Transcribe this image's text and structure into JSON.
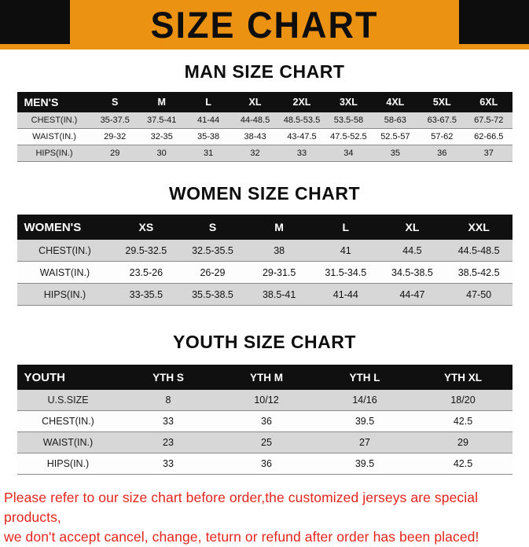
{
  "banner": {
    "title": "SIZE CHART",
    "colors": {
      "background": "#EC9213",
      "corner": "#0D0D0D",
      "text": "#0E0E0E"
    }
  },
  "sections": [
    {
      "id": "men",
      "heading": "MAN SIZE CHART",
      "table": {
        "header": [
          "MEN'S",
          "S",
          "M",
          "L",
          "XL",
          "2XL",
          "3XL",
          "4XL",
          "5XL",
          "6XL"
        ],
        "rows": [
          [
            "CHEST(IN.)",
            "35-37.5",
            "37.5-41",
            "41-44",
            "44-48.5",
            "48.5-53.5",
            "53.5-58",
            "58-63",
            "63-67.5",
            "67.5-72"
          ],
          [
            "WAIST(IN.)",
            "29-32",
            "32-35",
            "35-38",
            "38-43",
            "43-47.5",
            "47.5-52.5",
            "52.5-57",
            "57-62",
            "62-66.5"
          ],
          [
            "HIPS(IN.)",
            "29",
            "30",
            "31",
            "32",
            "33",
            "34",
            "35",
            "36",
            "37"
          ]
        ]
      }
    },
    {
      "id": "women",
      "heading": "WOMEN SIZE CHART",
      "table": {
        "header": [
          "WOMEN'S",
          "XS",
          "S",
          "M",
          "L",
          "XL",
          "XXL"
        ],
        "rows": [
          [
            "CHEST(IN.)",
            "29.5-32.5",
            "32.5-35.5",
            "38",
            "41",
            "44.5",
            "44.5-48.5"
          ],
          [
            "WAIST(IN.)",
            "23.5-26",
            "26-29",
            "29-31.5",
            "31.5-34.5",
            "34.5-38.5",
            "38.5-42.5"
          ],
          [
            "HIPS(IN.)",
            "33-35.5",
            "35.5-38.5",
            "38.5-41",
            "41-44",
            "44-47",
            "47-50"
          ]
        ]
      }
    },
    {
      "id": "youth",
      "heading": "YOUTH SIZE CHART",
      "table": {
        "header": [
          "YOUTH",
          "YTH S",
          "YTH M",
          "YTH L",
          "YTH XL"
        ],
        "rows": [
          [
            "U.S.SIZE",
            "8",
            "10/12",
            "14/16",
            "18/20"
          ],
          [
            "CHEST(IN.)",
            "33",
            "36",
            "39.5",
            "42.5"
          ],
          [
            "WAIST(IN.)",
            "23",
            "25",
            "27",
            "29"
          ],
          [
            "HIPS(IN.)",
            "33",
            "36",
            "39.5",
            "42.5"
          ]
        ]
      }
    }
  ],
  "footer": {
    "line1": "Please refer to our size chart before order,the customized jerseys are special products,",
    "line2": "we don't accept cancel, change, teturn or refund after order has been placed!",
    "color": "#E5251C"
  },
  "table_colors": {
    "header_bg": "#101010",
    "header_text": "#FFFFFF",
    "stripe_row": "#D7D7D7",
    "plain_row": "#FDFDFD",
    "row_border": "#8A8A8A"
  }
}
